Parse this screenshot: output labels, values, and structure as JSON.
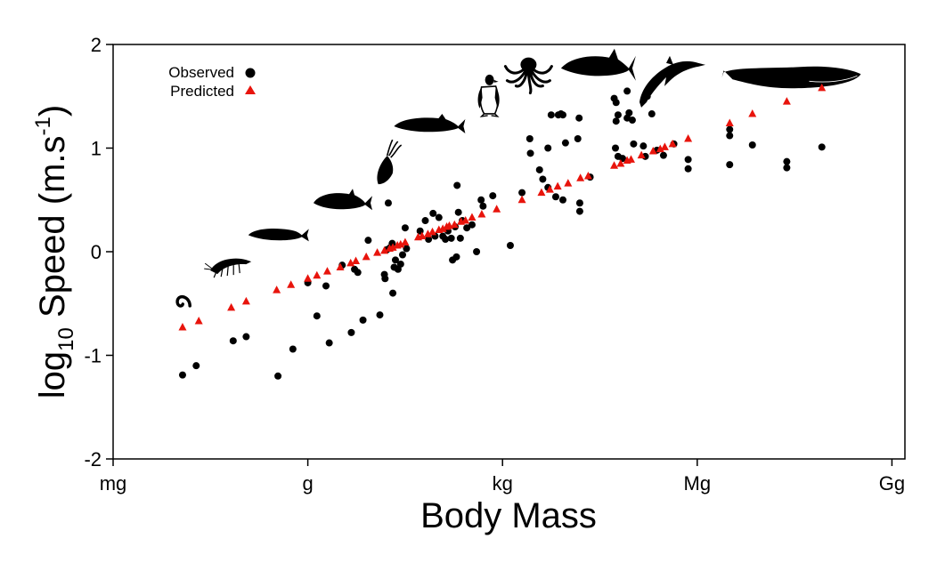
{
  "chart_data": {
    "type": "scatter",
    "xlabel": "Body Mass",
    "ylabel_main": "log",
    "ylabel_sub": "10",
    "ylabel_rest": " Speed (m.s",
    "ylabel_sup": "-1",
    "ylabel_end": ")",
    "x_scale": "log10 of body mass in grams",
    "xlim": [
      -3,
      9.2
    ],
    "ylim": [
      -2,
      2
    ],
    "xticks": [
      {
        "value": -3,
        "label": "mg"
      },
      {
        "value": 0,
        "label": "g"
      },
      {
        "value": 3,
        "label": "kg"
      },
      {
        "value": 6,
        "label": "Mg"
      },
      {
        "value": 9,
        "label": "Gg"
      }
    ],
    "yticks": [
      {
        "value": 2,
        "label": "2"
      },
      {
        "value": 1,
        "label": "1"
      },
      {
        "value": 0,
        "label": "0"
      },
      {
        "value": -1,
        "label": "-1"
      },
      {
        "value": -2,
        "label": "-2"
      }
    ],
    "grid": false,
    "legend_position": "top-left",
    "legend": [
      {
        "label": "Observed",
        "marker": "circle",
        "color": "#000000"
      },
      {
        "label": "Predicted",
        "marker": "triangle",
        "color": "#e8140c"
      }
    ],
    "series": [
      {
        "name": "Observed",
        "marker": "circle",
        "color": "#000000",
        "points": [
          [
            -1.93,
            -1.19
          ],
          [
            -1.72,
            -1.1
          ],
          [
            -1.15,
            -0.86
          ],
          [
            -0.95,
            -0.82
          ],
          [
            -0.46,
            -1.2
          ],
          [
            -0.23,
            -0.94
          ],
          [
            0.0,
            -0.3
          ],
          [
            0.14,
            -0.62
          ],
          [
            0.28,
            -0.33
          ],
          [
            0.33,
            -0.88
          ],
          [
            0.53,
            -0.13
          ],
          [
            0.67,
            -0.78
          ],
          [
            0.72,
            -0.17
          ],
          [
            0.77,
            -0.2
          ],
          [
            0.85,
            -0.66
          ],
          [
            0.93,
            0.11
          ],
          [
            1.11,
            -0.61
          ],
          [
            1.18,
            -0.22
          ],
          [
            1.19,
            -0.26
          ],
          [
            1.22,
            0.02
          ],
          [
            1.24,
            0.47
          ],
          [
            1.27,
            0.04
          ],
          [
            1.3,
            0.08
          ],
          [
            1.33,
            -0.15
          ],
          [
            1.35,
            -0.08
          ],
          [
            1.39,
            -0.17
          ],
          [
            1.31,
            -0.4
          ],
          [
            1.43,
            -0.12
          ],
          [
            1.46,
            -0.03
          ],
          [
            1.5,
            0.23
          ],
          [
            1.52,
            0.03
          ],
          [
            1.73,
            0.2
          ],
          [
            1.81,
            0.3
          ],
          [
            1.86,
            0.12
          ],
          [
            1.93,
            0.37
          ],
          [
            1.96,
            0.15
          ],
          [
            2.02,
            0.33
          ],
          [
            2.08,
            0.15
          ],
          [
            2.12,
            0.12
          ],
          [
            2.16,
            0.2
          ],
          [
            2.21,
            0.13
          ],
          [
            2.23,
            -0.08
          ],
          [
            2.27,
            0.24
          ],
          [
            2.29,
            -0.05
          ],
          [
            2.3,
            0.64
          ],
          [
            2.32,
            0.38
          ],
          [
            2.35,
            0.13
          ],
          [
            2.38,
            0.3
          ],
          [
            2.45,
            0.23
          ],
          [
            2.53,
            0.26
          ],
          [
            2.6,
            0.0
          ],
          [
            2.67,
            0.5
          ],
          [
            2.7,
            0.44
          ],
          [
            2.85,
            0.54
          ],
          [
            3.12,
            0.06
          ],
          [
            3.3,
            0.57
          ],
          [
            3.42,
            1.09
          ],
          [
            3.43,
            0.95
          ],
          [
            3.57,
            0.79
          ],
          [
            3.62,
            0.7
          ],
          [
            3.7,
            1.0
          ],
          [
            3.75,
            1.32
          ],
          [
            3.7,
            0.62
          ],
          [
            3.82,
            0.53
          ],
          [
            3.86,
            1.32
          ],
          [
            3.9,
            1.33
          ],
          [
            3.93,
            1.32
          ],
          [
            3.97,
            1.05
          ],
          [
            3.93,
            0.5
          ],
          [
            4.16,
            1.09
          ],
          [
            4.18,
            1.29
          ],
          [
            4.19,
            0.47
          ],
          [
            4.19,
            0.39
          ],
          [
            4.35,
            0.72
          ],
          [
            4.72,
            1.48
          ],
          [
            4.75,
            1.44
          ],
          [
            4.75,
            1.26
          ],
          [
            4.78,
            1.32
          ],
          [
            4.74,
            1.0
          ],
          [
            4.78,
            0.92
          ],
          [
            4.85,
            0.9
          ],
          [
            4.92,
            1.29
          ],
          [
            4.92,
            1.55
          ],
          [
            4.95,
            1.34
          ],
          [
            5.0,
            1.27
          ],
          [
            5.02,
            1.04
          ],
          [
            5.17,
            1.02
          ],
          [
            5.2,
            0.92
          ],
          [
            5.23,
            1.5
          ],
          [
            5.3,
            1.33
          ],
          [
            5.38,
            0.98
          ],
          [
            5.48,
            0.93
          ],
          [
            5.64,
            1.04
          ],
          [
            5.86,
            0.8
          ],
          [
            5.86,
            0.89
          ],
          [
            6.5,
            1.18
          ],
          [
            6.5,
            1.12
          ],
          [
            6.5,
            0.84
          ],
          [
            6.85,
            1.03
          ],
          [
            7.38,
            0.87
          ],
          [
            7.38,
            0.81
          ],
          [
            7.92,
            1.01
          ]
        ]
      },
      {
        "name": "Predicted",
        "marker": "triangle",
        "color": "#e8140c",
        "points": [
          [
            -1.93,
            -0.73
          ],
          [
            -1.68,
            -0.67
          ],
          [
            -1.18,
            -0.54
          ],
          [
            -0.95,
            -0.48
          ],
          [
            -0.48,
            -0.37
          ],
          [
            -0.26,
            -0.32
          ],
          [
            0.0,
            -0.26
          ],
          [
            0.14,
            -0.23
          ],
          [
            0.3,
            -0.19
          ],
          [
            0.5,
            -0.15
          ],
          [
            0.66,
            -0.11
          ],
          [
            0.74,
            -0.09
          ],
          [
            0.9,
            -0.05
          ],
          [
            1.07,
            -0.01
          ],
          [
            1.18,
            0.01
          ],
          [
            1.26,
            0.03
          ],
          [
            1.31,
            0.04
          ],
          [
            1.38,
            0.06
          ],
          [
            1.43,
            0.07
          ],
          [
            1.5,
            0.09
          ],
          [
            1.7,
            0.14
          ],
          [
            1.76,
            0.15
          ],
          [
            1.85,
            0.17
          ],
          [
            1.92,
            0.19
          ],
          [
            2.02,
            0.21
          ],
          [
            2.08,
            0.22
          ],
          [
            2.14,
            0.24
          ],
          [
            2.18,
            0.25
          ],
          [
            2.26,
            0.26
          ],
          [
            2.36,
            0.29
          ],
          [
            2.43,
            0.3
          ],
          [
            2.53,
            0.33
          ],
          [
            2.68,
            0.36
          ],
          [
            2.91,
            0.41
          ],
          [
            3.3,
            0.5
          ],
          [
            3.6,
            0.57
          ],
          [
            3.73,
            0.6
          ],
          [
            3.85,
            0.63
          ],
          [
            4.01,
            0.66
          ],
          [
            4.2,
            0.71
          ],
          [
            4.32,
            0.73
          ],
          [
            4.72,
            0.83
          ],
          [
            4.82,
            0.85
          ],
          [
            4.92,
            0.88
          ],
          [
            4.98,
            0.89
          ],
          [
            5.14,
            0.93
          ],
          [
            5.32,
            0.97
          ],
          [
            5.43,
            0.99
          ],
          [
            5.5,
            1.01
          ],
          [
            5.62,
            1.04
          ],
          [
            5.86,
            1.09
          ],
          [
            6.5,
            1.24
          ],
          [
            6.85,
            1.33
          ],
          [
            7.38,
            1.45
          ],
          [
            7.92,
            1.58
          ]
        ]
      }
    ],
    "silhouettes": [
      {
        "icon": "worm-icon",
        "x": -1.9,
        "y": -0.42
      },
      {
        "icon": "shrimp-icon",
        "x": -1.2,
        "y": -0.13
      },
      {
        "icon": "minnow-icon",
        "x": -0.45,
        "y": 0.16
      },
      {
        "icon": "fish-icon",
        "x": 0.5,
        "y": 0.47
      },
      {
        "icon": "squid-icon",
        "x": 1.25,
        "y": 0.84
      },
      {
        "icon": "salmon-icon",
        "x": 1.85,
        "y": 1.21
      },
      {
        "icon": "penguin-icon",
        "x": 2.8,
        "y": 1.52
      },
      {
        "icon": "octopus-icon",
        "x": 3.4,
        "y": 1.72
      },
      {
        "icon": "tuna-icon",
        "x": 4.45,
        "y": 1.77
      },
      {
        "icon": "dolphin-icon",
        "x": 5.55,
        "y": 1.7
      },
      {
        "icon": "whale-icon",
        "x": 7.45,
        "y": 1.68
      }
    ]
  }
}
